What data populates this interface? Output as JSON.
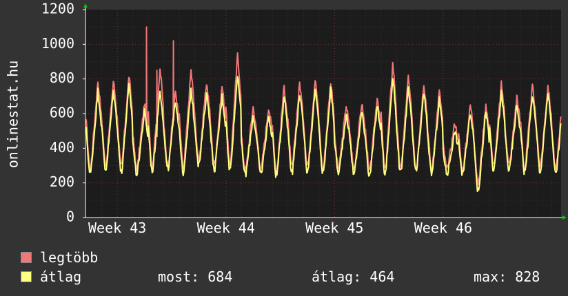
{
  "chart_data": {
    "type": "line",
    "ylabel": "onlinestat.hu",
    "ylim": [
      0,
      1200
    ],
    "yticks": [
      0,
      200,
      400,
      600,
      800,
      1000,
      1200
    ],
    "xticks": [
      {
        "label": "Week 43",
        "x": 1.0
      },
      {
        "label": "Week 44",
        "x": 8.0
      },
      {
        "label": "Week 45",
        "x": 15.0
      },
      {
        "label": "Week 46",
        "x": 22.0
      }
    ],
    "xlim": [
      -1.05,
      29.6
    ],
    "grid": true,
    "series": [
      {
        "name": "legtöbb",
        "color": "#f07878",
        "day_lows": [
          260,
          290,
          270,
          270,
          280,
          290,
          260,
          320,
          290,
          280,
          260,
          270,
          250,
          270,
          280,
          260,
          270,
          270,
          250,
          250,
          260,
          270,
          260,
          270,
          260,
          180,
          280,
          290,
          270,
          280,
          260
        ],
        "day_highs": [
          790,
          820,
          660,
          860,
          730,
          850,
          780,
          760,
          940,
          640,
          640,
          760,
          780,
          800,
          790,
          650,
          660,
          700,
          890,
          810,
          780,
          730,
          550,
          650,
          660,
          770,
          700,
          760,
          760,
          750
        ],
        "spikes": [
          {
            "x": 2.88,
            "y": 1100
          },
          {
            "x": 4.62,
            "y": 1020
          },
          {
            "x": 3.55,
            "y": 850
          }
        ]
      },
      {
        "name": "átlag",
        "color": "#ffff80",
        "day_lows": [
          235,
          260,
          245,
          240,
          250,
          260,
          235,
          290,
          260,
          250,
          235,
          240,
          225,
          245,
          250,
          235,
          245,
          245,
          225,
          225,
          235,
          245,
          235,
          245,
          235,
          140,
          250,
          260,
          245,
          250,
          235
        ],
        "day_highs": [
          730,
          760,
          610,
          740,
          680,
          740,
          720,
          700,
          830,
          590,
          590,
          710,
          720,
          740,
          740,
          600,
          610,
          650,
          810,
          740,
          720,
          680,
          500,
          610,
          620,
          720,
          650,
          710,
          720,
          690
        ]
      }
    ]
  },
  "legend": {
    "max_label": "legtöbb",
    "avg_label": "átlag",
    "stats": {
      "most": "most: 684",
      "atlag": "átlag: 464",
      "max": "max: 828"
    }
  }
}
